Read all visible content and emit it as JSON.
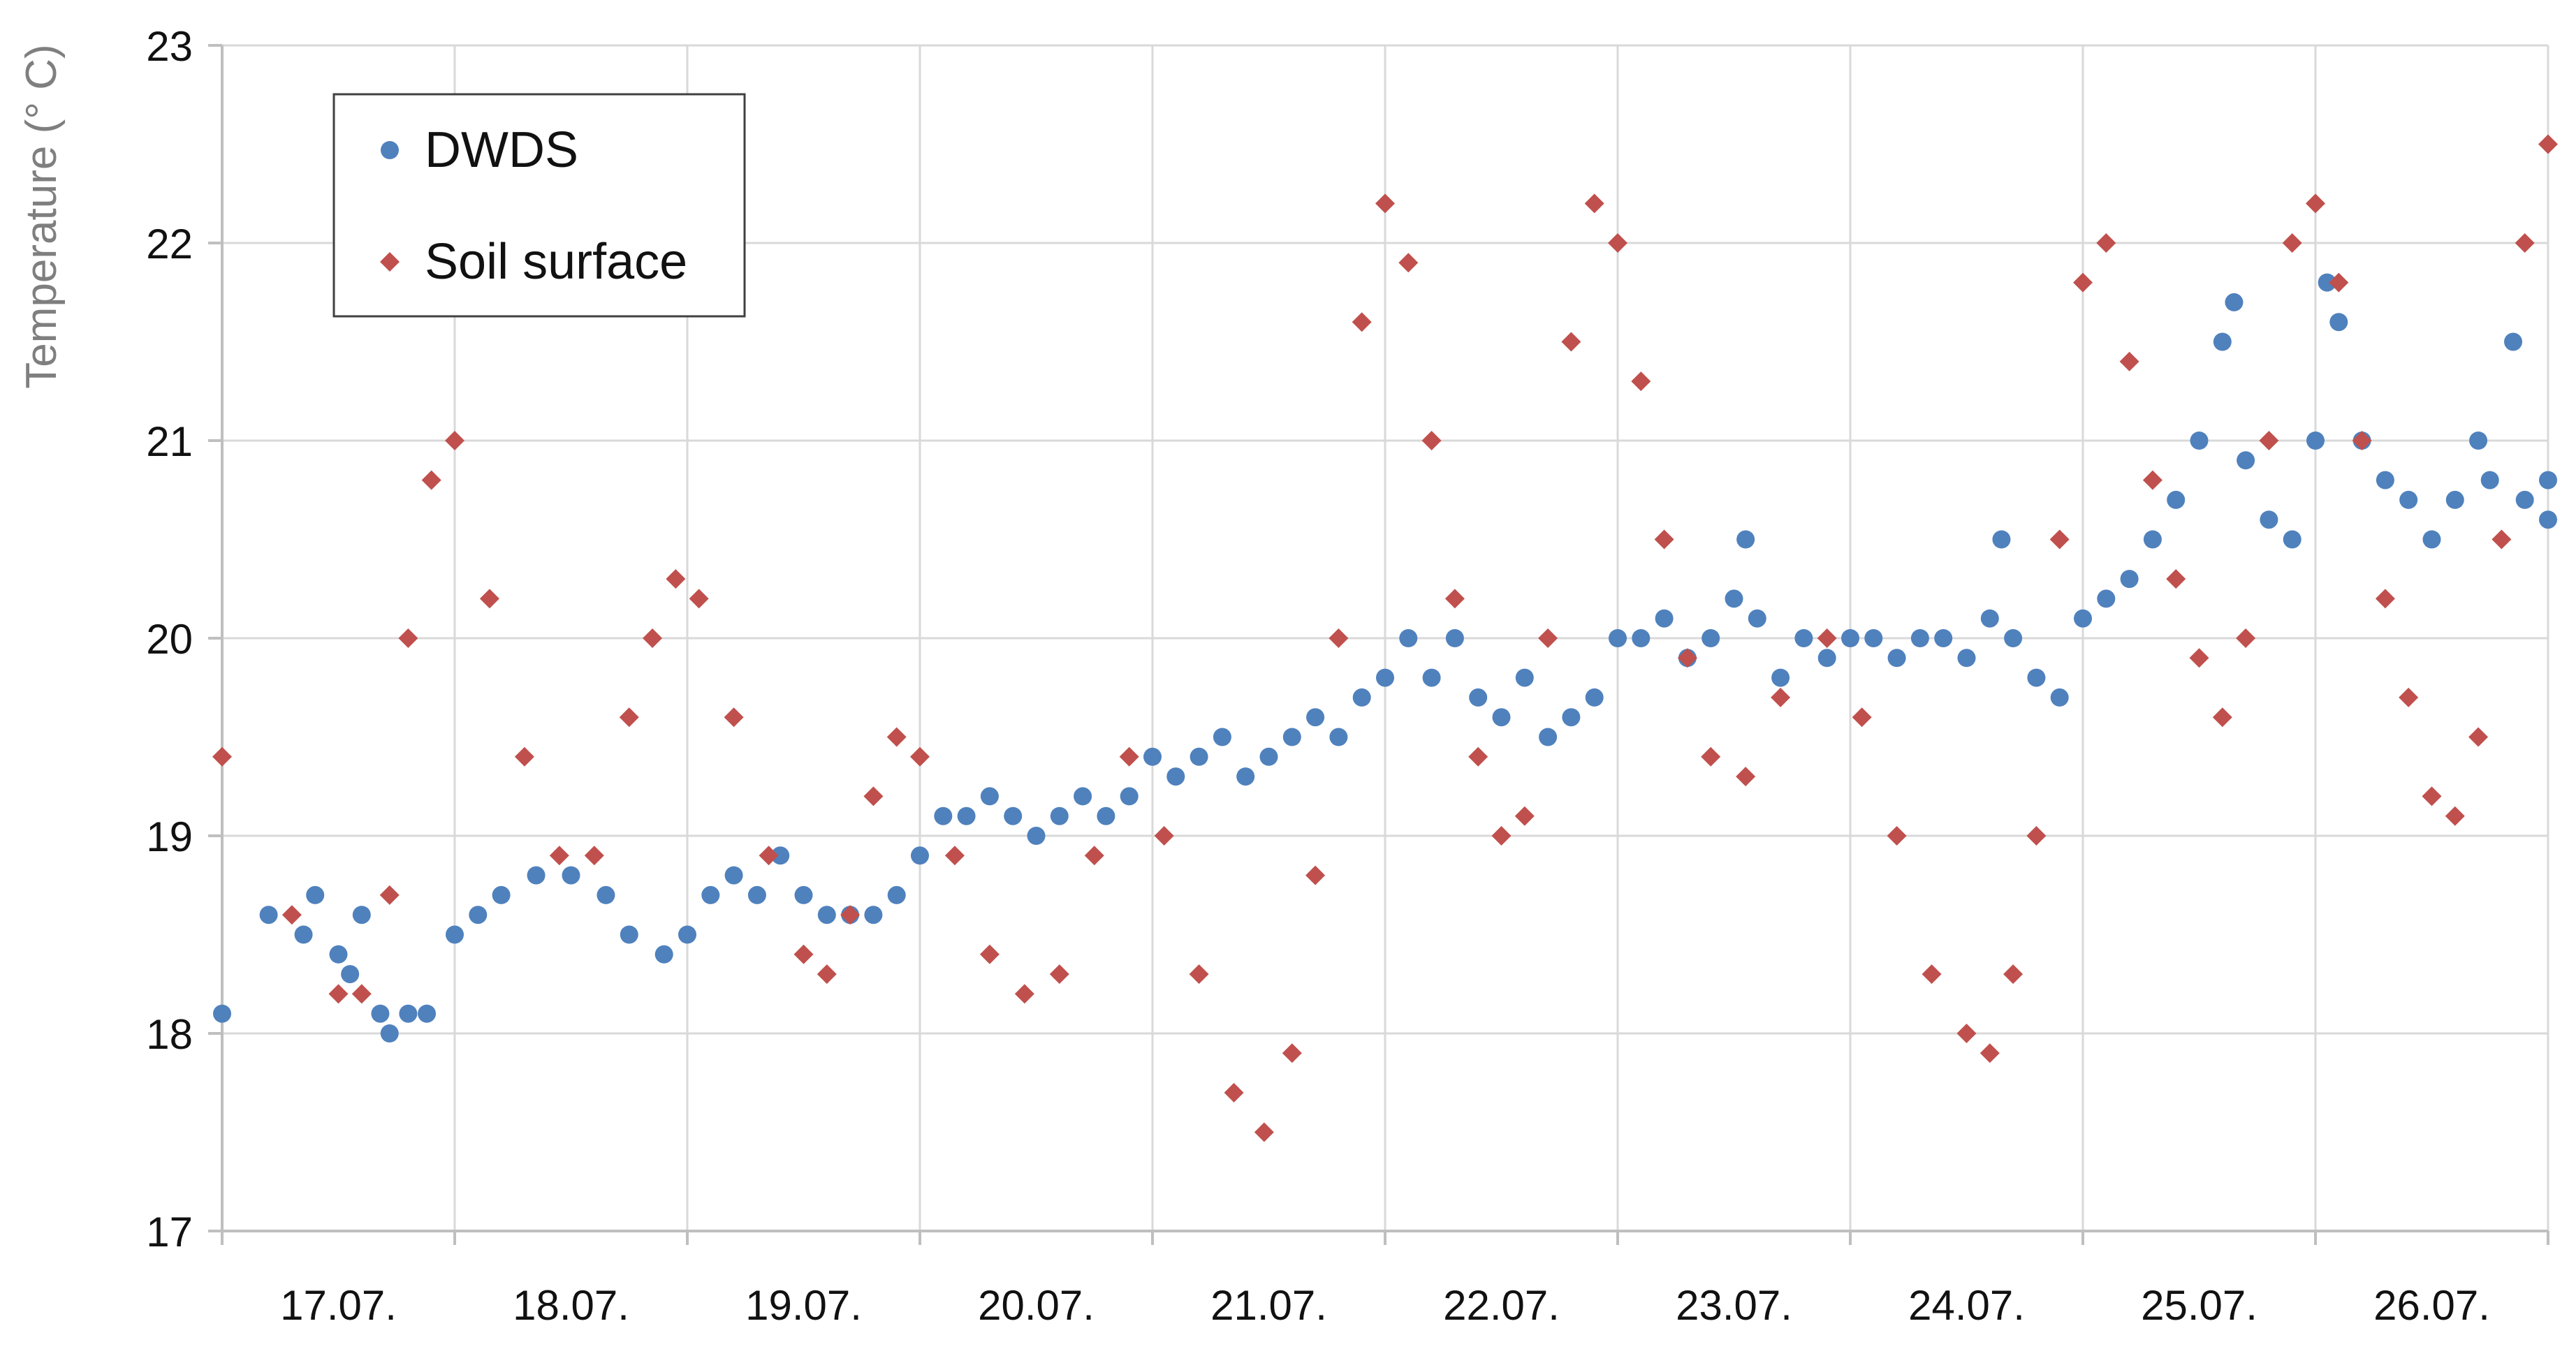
{
  "chart_data": {
    "type": "scatter",
    "title": "",
    "xlabel": "",
    "ylabel": "Temperature (° C)",
    "ylim": [
      17,
      23
    ],
    "yticks": [
      "17",
      "18",
      "19",
      "20",
      "21",
      "22",
      "23"
    ],
    "xlim_days": [
      0,
      10
    ],
    "xtick_labels": [
      "17.07.",
      "18.07.",
      "19.07.",
      "20.07.",
      "21.07.",
      "22.07.",
      "23.07.",
      "24.07.",
      "25.07.",
      "26.07."
    ],
    "grid": true,
    "legend": {
      "placement": "top-left"
    },
    "series": [
      {
        "name": "DWDS",
        "marker": "circle",
        "color": "#4f81bd",
        "points": [
          [
            0.0,
            18.1
          ],
          [
            0.2,
            18.6
          ],
          [
            0.35,
            18.5
          ],
          [
            0.4,
            18.7
          ],
          [
            0.5,
            18.4
          ],
          [
            0.55,
            18.3
          ],
          [
            0.6,
            18.6
          ],
          [
            0.68,
            18.1
          ],
          [
            0.72,
            18.0
          ],
          [
            0.8,
            18.1
          ],
          [
            0.88,
            18.1
          ],
          [
            1.0,
            18.5
          ],
          [
            1.1,
            18.6
          ],
          [
            1.2,
            18.7
          ],
          [
            1.35,
            18.8
          ],
          [
            1.5,
            18.8
          ],
          [
            1.65,
            18.7
          ],
          [
            1.75,
            18.5
          ],
          [
            1.9,
            18.4
          ],
          [
            2.0,
            18.5
          ],
          [
            2.1,
            18.7
          ],
          [
            2.2,
            18.8
          ],
          [
            2.3,
            18.7
          ],
          [
            2.4,
            18.9
          ],
          [
            2.5,
            18.7
          ],
          [
            2.6,
            18.6
          ],
          [
            2.7,
            18.6
          ],
          [
            2.8,
            18.6
          ],
          [
            2.9,
            18.7
          ],
          [
            3.0,
            18.9
          ],
          [
            3.1,
            19.1
          ],
          [
            3.2,
            19.1
          ],
          [
            3.3,
            19.2
          ],
          [
            3.4,
            19.1
          ],
          [
            3.5,
            19.0
          ],
          [
            3.6,
            19.1
          ],
          [
            3.7,
            19.2
          ],
          [
            3.8,
            19.1
          ],
          [
            3.9,
            19.2
          ],
          [
            4.0,
            19.4
          ],
          [
            4.1,
            19.3
          ],
          [
            4.2,
            19.4
          ],
          [
            4.3,
            19.5
          ],
          [
            4.4,
            19.3
          ],
          [
            4.5,
            19.4
          ],
          [
            4.6,
            19.5
          ],
          [
            4.7,
            19.6
          ],
          [
            4.8,
            19.5
          ],
          [
            4.9,
            19.7
          ],
          [
            5.0,
            19.8
          ],
          [
            5.1,
            20.0
          ],
          [
            5.2,
            19.8
          ],
          [
            5.3,
            20.0
          ],
          [
            5.4,
            19.7
          ],
          [
            5.5,
            19.6
          ],
          [
            5.6,
            19.8
          ],
          [
            5.7,
            19.5
          ],
          [
            5.8,
            19.6
          ],
          [
            5.9,
            19.7
          ],
          [
            6.0,
            20.0
          ],
          [
            6.1,
            20.0
          ],
          [
            6.2,
            20.1
          ],
          [
            6.3,
            19.9
          ],
          [
            6.4,
            20.0
          ],
          [
            6.5,
            20.2
          ],
          [
            6.55,
            20.5
          ],
          [
            6.6,
            20.1
          ],
          [
            6.7,
            19.8
          ],
          [
            6.8,
            20.0
          ],
          [
            6.9,
            19.9
          ],
          [
            7.0,
            20.0
          ],
          [
            7.1,
            20.0
          ],
          [
            7.2,
            19.9
          ],
          [
            7.3,
            20.0
          ],
          [
            7.4,
            20.0
          ],
          [
            7.5,
            19.9
          ],
          [
            7.6,
            20.1
          ],
          [
            7.65,
            20.5
          ],
          [
            7.7,
            20.0
          ],
          [
            7.8,
            19.8
          ],
          [
            7.9,
            19.7
          ],
          [
            8.0,
            20.1
          ],
          [
            8.1,
            20.2
          ],
          [
            8.2,
            20.3
          ],
          [
            8.3,
            20.5
          ],
          [
            8.4,
            20.7
          ],
          [
            8.5,
            21.0
          ],
          [
            8.6,
            21.5
          ],
          [
            8.65,
            21.7
          ],
          [
            8.7,
            20.9
          ],
          [
            8.8,
            20.6
          ],
          [
            8.9,
            20.5
          ],
          [
            9.0,
            21.0
          ],
          [
            9.05,
            21.8
          ],
          [
            9.1,
            21.6
          ],
          [
            9.2,
            21.0
          ],
          [
            9.3,
            20.8
          ],
          [
            9.4,
            20.7
          ],
          [
            9.5,
            20.5
          ],
          [
            9.6,
            20.7
          ],
          [
            9.7,
            21.0
          ],
          [
            9.75,
            20.8
          ],
          [
            9.85,
            21.5
          ],
          [
            9.9,
            20.7
          ],
          [
            10.0,
            20.6
          ],
          [
            10.0,
            20.8
          ]
        ]
      },
      {
        "name": "Soil surface",
        "marker": "diamond",
        "color": "#c0504d",
        "points": [
          [
            0.0,
            19.4
          ],
          [
            0.3,
            18.6
          ],
          [
            0.5,
            18.2
          ],
          [
            0.6,
            18.2
          ],
          [
            0.72,
            18.7
          ],
          [
            0.8,
            20.0
          ],
          [
            0.9,
            20.8
          ],
          [
            1.0,
            21.0
          ],
          [
            1.15,
            20.2
          ],
          [
            1.3,
            19.4
          ],
          [
            1.45,
            18.9
          ],
          [
            1.6,
            18.9
          ],
          [
            1.75,
            19.6
          ],
          [
            1.85,
            20.0
          ],
          [
            1.95,
            20.3
          ],
          [
            2.05,
            20.2
          ],
          [
            2.2,
            19.6
          ],
          [
            2.35,
            18.9
          ],
          [
            2.5,
            18.4
          ],
          [
            2.6,
            18.3
          ],
          [
            2.7,
            18.6
          ],
          [
            2.8,
            19.2
          ],
          [
            2.9,
            19.5
          ],
          [
            3.0,
            19.4
          ],
          [
            3.15,
            18.9
          ],
          [
            3.3,
            18.4
          ],
          [
            3.45,
            18.2
          ],
          [
            3.6,
            18.3
          ],
          [
            3.75,
            18.9
          ],
          [
            3.9,
            19.4
          ],
          [
            4.05,
            19.0
          ],
          [
            4.2,
            18.3
          ],
          [
            4.35,
            17.7
          ],
          [
            4.48,
            17.5
          ],
          [
            4.6,
            17.9
          ],
          [
            4.7,
            18.8
          ],
          [
            4.8,
            20.0
          ],
          [
            4.9,
            21.6
          ],
          [
            5.0,
            22.2
          ],
          [
            5.1,
            21.9
          ],
          [
            5.2,
            21.0
          ],
          [
            5.3,
            20.2
          ],
          [
            5.4,
            19.4
          ],
          [
            5.5,
            19.0
          ],
          [
            5.6,
            19.1
          ],
          [
            5.7,
            20.0
          ],
          [
            5.8,
            21.5
          ],
          [
            5.9,
            22.2
          ],
          [
            6.0,
            22.0
          ],
          [
            6.1,
            21.3
          ],
          [
            6.2,
            20.5
          ],
          [
            6.3,
            19.9
          ],
          [
            6.4,
            19.4
          ],
          [
            6.55,
            19.3
          ],
          [
            6.7,
            19.7
          ],
          [
            6.9,
            20.0
          ],
          [
            7.05,
            19.6
          ],
          [
            7.2,
            19.0
          ],
          [
            7.35,
            18.3
          ],
          [
            7.5,
            18.0
          ],
          [
            7.6,
            17.9
          ],
          [
            7.7,
            18.3
          ],
          [
            7.8,
            19.0
          ],
          [
            7.9,
            20.5
          ],
          [
            8.0,
            21.8
          ],
          [
            8.1,
            22.0
          ],
          [
            8.2,
            21.4
          ],
          [
            8.3,
            20.8
          ],
          [
            8.4,
            20.3
          ],
          [
            8.5,
            19.9
          ],
          [
            8.6,
            19.6
          ],
          [
            8.7,
            20.0
          ],
          [
            8.8,
            21.0
          ],
          [
            8.9,
            22.0
          ],
          [
            9.0,
            22.2
          ],
          [
            9.1,
            21.8
          ],
          [
            9.2,
            21.0
          ],
          [
            9.3,
            20.2
          ],
          [
            9.4,
            19.7
          ],
          [
            9.5,
            19.2
          ],
          [
            9.6,
            19.1
          ],
          [
            9.7,
            19.5
          ],
          [
            9.8,
            20.5
          ],
          [
            9.9,
            22.0
          ],
          [
            10.0,
            22.5
          ]
        ]
      }
    ]
  }
}
